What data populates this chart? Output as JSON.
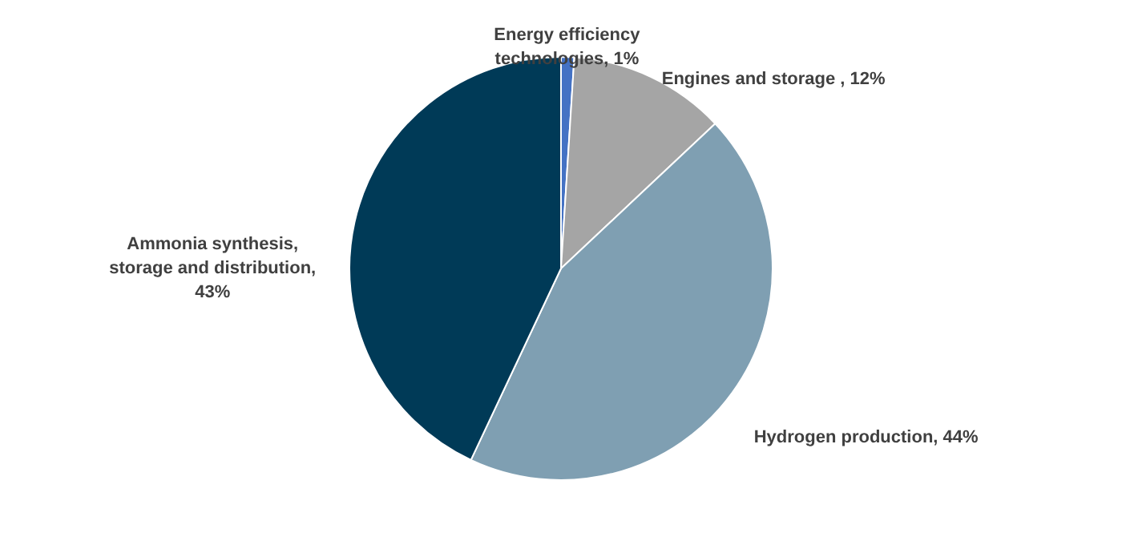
{
  "chart_data": {
    "type": "pie",
    "categories": [
      "Energy efficiency technologies, 1%",
      "Engines and storage , 12%",
      "Hydrogen production,  44%",
      "Ammonia synthesis, storage and distribution, 43%"
    ],
    "values": [
      1,
      12,
      44,
      43
    ],
    "colors": [
      "#4472c4",
      "#a5a5a5",
      "#7f9fb2",
      "#003a57"
    ]
  }
}
